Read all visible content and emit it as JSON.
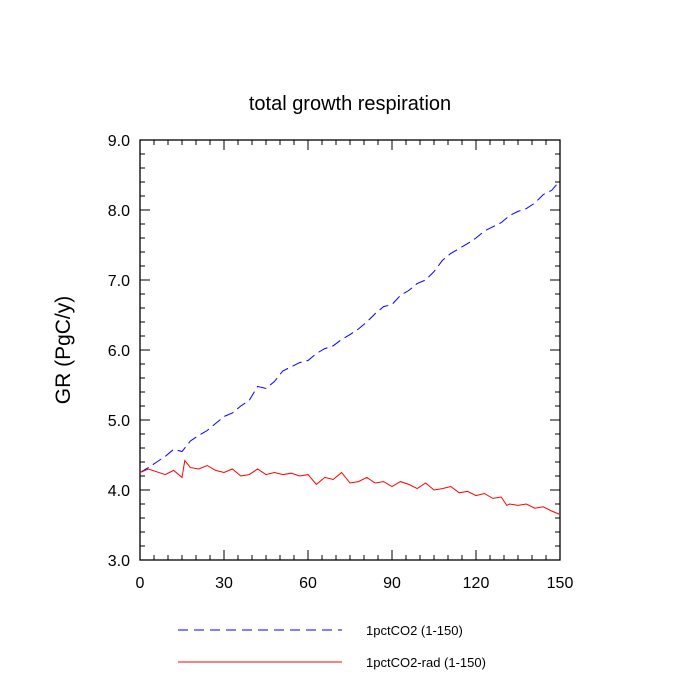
{
  "chart_data": {
    "type": "line",
    "title": "total growth respiration",
    "xlabel": "",
    "ylabel": "GR  (PgC/y)",
    "xlim": [
      0,
      150
    ],
    "ylim": [
      3.0,
      9.0
    ],
    "xticks": [
      0,
      30,
      60,
      90,
      120,
      150
    ],
    "xtick_labels": [
      "0",
      "30",
      "60",
      "90",
      "120",
      "150"
    ],
    "yticks": [
      3.0,
      4.0,
      5.0,
      6.0,
      7.0,
      8.0,
      9.0
    ],
    "ytick_labels": [
      "3.0",
      "4.0",
      "5.0",
      "6.0",
      "7.0",
      "8.0",
      "9.0"
    ],
    "grid": false,
    "legend_position": "bottom",
    "series": [
      {
        "name": "1pctCO2 (1-150)",
        "color": "#0000ff",
        "style": "dashed",
        "x": [
          0,
          3,
          6,
          9,
          12,
          15,
          18,
          21,
          24,
          27,
          30,
          33,
          36,
          39,
          42,
          45,
          48,
          51,
          54,
          57,
          60,
          63,
          66,
          69,
          72,
          75,
          78,
          81,
          84,
          87,
          90,
          93,
          96,
          99,
          102,
          105,
          108,
          111,
          114,
          117,
          120,
          123,
          126,
          129,
          132,
          135,
          138,
          141,
          144,
          147,
          150
        ],
        "values": [
          4.25,
          4.32,
          4.4,
          4.48,
          4.58,
          4.55,
          4.7,
          4.78,
          4.85,
          4.95,
          5.05,
          5.1,
          5.2,
          5.28,
          5.48,
          5.45,
          5.55,
          5.7,
          5.76,
          5.82,
          5.85,
          5.95,
          6.02,
          6.06,
          6.15,
          6.22,
          6.3,
          6.4,
          6.52,
          6.62,
          6.65,
          6.78,
          6.85,
          6.95,
          7.0,
          7.12,
          7.28,
          7.38,
          7.45,
          7.52,
          7.6,
          7.7,
          7.76,
          7.82,
          7.92,
          7.98,
          8.02,
          8.1,
          8.22,
          8.28,
          8.42
        ]
      },
      {
        "name": "1pctCO2-rad (1-150)",
        "color": "#ff0000",
        "style": "solid",
        "x": [
          0,
          3,
          6,
          9,
          12,
          15,
          16,
          18,
          21,
          24,
          27,
          30,
          33,
          36,
          39,
          42,
          45,
          48,
          51,
          54,
          57,
          60,
          63,
          66,
          69,
          72,
          75,
          78,
          81,
          84,
          87,
          90,
          93,
          96,
          99,
          102,
          105,
          108,
          111,
          114,
          117,
          120,
          123,
          126,
          129,
          131,
          132,
          135,
          138,
          141,
          144,
          147,
          150
        ],
        "values": [
          4.25,
          4.3,
          4.26,
          4.22,
          4.28,
          4.18,
          4.42,
          4.32,
          4.3,
          4.35,
          4.28,
          4.25,
          4.3,
          4.2,
          4.22,
          4.3,
          4.22,
          4.25,
          4.22,
          4.24,
          4.2,
          4.22,
          4.08,
          4.18,
          4.15,
          4.25,
          4.1,
          4.12,
          4.18,
          4.1,
          4.12,
          4.05,
          4.12,
          4.08,
          4.02,
          4.1,
          4.0,
          4.02,
          4.05,
          3.96,
          3.98,
          3.92,
          3.95,
          3.88,
          3.9,
          3.78,
          3.8,
          3.78,
          3.8,
          3.74,
          3.76,
          3.7,
          3.65
        ]
      }
    ]
  }
}
